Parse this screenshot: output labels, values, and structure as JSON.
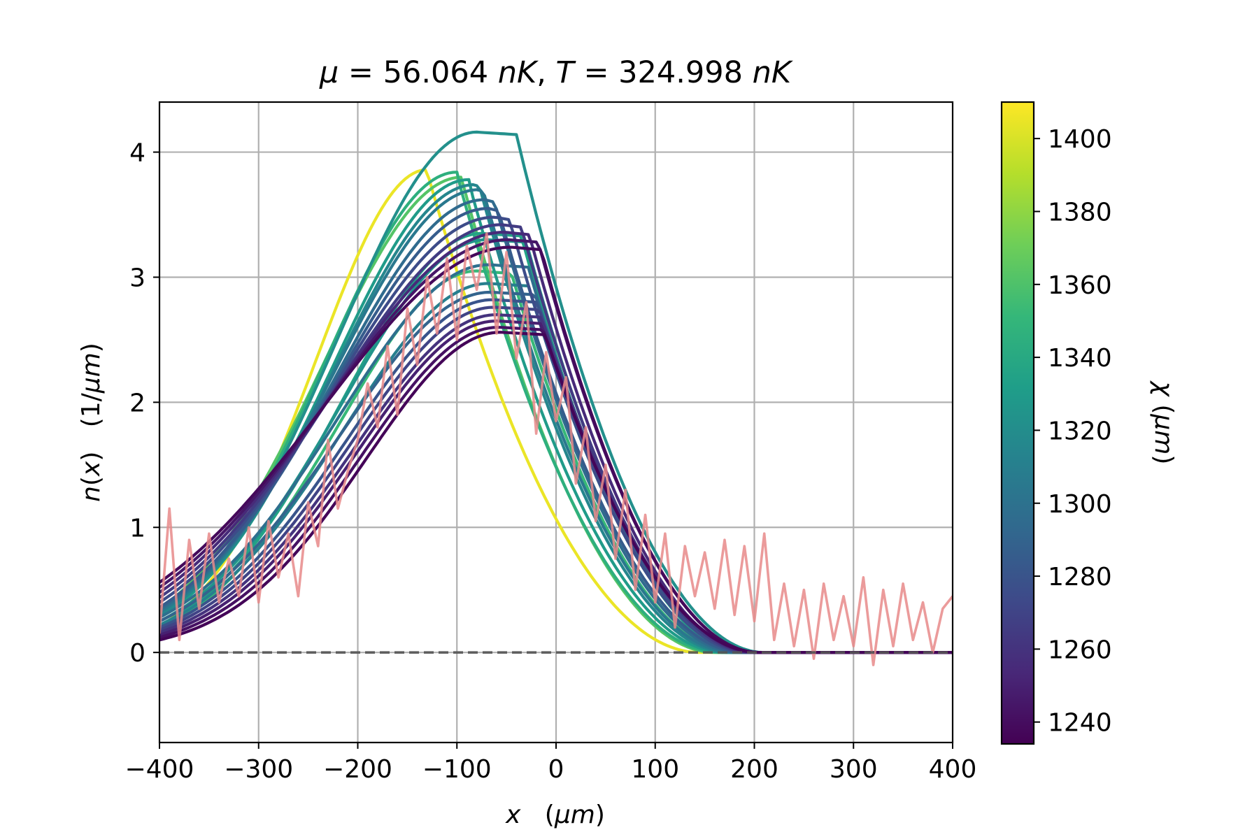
{
  "chart_data": {
    "type": "line",
    "title": "μ = 56.064 nK, T = 324.998 nK",
    "title_parts": {
      "mu_symbol": "μ",
      "mu_eq": " = 56.064 ",
      "mu_unit": "nK",
      "sep": ", ",
      "t_symbol": "T",
      "t_eq": " = 324.998 ",
      "t_unit": "nK"
    },
    "xlabel": "x   (μm)",
    "xlabel_parts": {
      "var": "x",
      "unit_open": "   (",
      "unit": "μm",
      "unit_close": ")"
    },
    "ylabel": "n(x)   (1/μm)",
    "ylabel_parts": {
      "var": "n",
      "arg_open": "(",
      "arg": "x",
      "arg_close": ")",
      "unit_open": "   (1/",
      "unit": "μm",
      "unit_close": ")"
    },
    "xlim": [
      -400,
      400
    ],
    "ylim": [
      -0.72,
      4.4
    ],
    "x_ticks": [
      -400,
      -300,
      -200,
      -100,
      0,
      100,
      200,
      300,
      400
    ],
    "x_tick_labels": [
      "−400",
      "−300",
      "−200",
      "−100",
      "0",
      "100",
      "200",
      "300",
      "400"
    ],
    "y_ticks": [
      0,
      1,
      2,
      3,
      4
    ],
    "y_tick_labels": [
      "0",
      "1",
      "2",
      "3",
      "4"
    ],
    "grid": true,
    "reference_line": {
      "y": 0,
      "style": "dashed",
      "color": "#555555"
    },
    "colorbar": {
      "label": "χ (μm)",
      "label_parts": {
        "var": "χ",
        "unit_open": " (",
        "unit": "μm",
        "unit_close": ")"
      },
      "range": [
        1234,
        1410
      ],
      "ticks": [
        1240,
        1260,
        1280,
        1300,
        1320,
        1340,
        1360,
        1380,
        1400
      ],
      "tick_labels": [
        "1240",
        "1260",
        "1280",
        "1300",
        "1320",
        "1340",
        "1360",
        "1380",
        "1400"
      ],
      "colormap": "viridis",
      "colormap_stops": [
        "#440154",
        "#482878",
        "#3e4989",
        "#31688e",
        "#26828e",
        "#1f9e89",
        "#35b779",
        "#6ece58",
        "#b5de2b",
        "#fde725"
      ]
    },
    "model_curves": {
      "description_of_family": "many theoretical profiles colored by χ",
      "curves": [
        {
          "chi": 1405,
          "peak_x": -130,
          "peak_n": 3.86,
          "flat": 0,
          "edge_x": 145,
          "tail": 0.21
        },
        {
          "chi": 1322,
          "peak_x": -80,
          "peak_n": 4.16,
          "flat": 40,
          "edge_x": 210,
          "tail": 0.3
        },
        {
          "chi": 1345,
          "peak_x": -100,
          "peak_n": 3.84,
          "flat": 0,
          "edge_x": 165,
          "tail": 0.3
        },
        {
          "chi": 1362,
          "peak_x": -95,
          "peak_n": 3.8,
          "flat": 0,
          "edge_x": 160,
          "tail": 0.35
        },
        {
          "chi": 1330,
          "peak_x": -88,
          "peak_n": 3.78,
          "flat": 0,
          "edge_x": 170,
          "tail": 0.28
        },
        {
          "chi": 1315,
          "peak_x": -82,
          "peak_n": 3.74,
          "flat": 5,
          "edge_x": 175,
          "tail": 0.3
        },
        {
          "chi": 1305,
          "peak_x": -78,
          "peak_n": 3.7,
          "flat": 5,
          "edge_x": 180,
          "tail": 0.32
        },
        {
          "chi": 1295,
          "peak_x": -72,
          "peak_n": 3.62,
          "flat": 10,
          "edge_x": 185,
          "tail": 0.34
        },
        {
          "chi": 1285,
          "peak_x": -68,
          "peak_n": 3.55,
          "flat": 10,
          "edge_x": 190,
          "tail": 0.36
        },
        {
          "chi": 1275,
          "peak_x": -62,
          "peak_n": 3.48,
          "flat": 15,
          "edge_x": 195,
          "tail": 0.4
        },
        {
          "chi": 1265,
          "peak_x": -55,
          "peak_n": 3.42,
          "flat": 20,
          "edge_x": 198,
          "tail": 0.44
        },
        {
          "chi": 1255,
          "peak_x": -52,
          "peak_n": 3.36,
          "flat": 25,
          "edge_x": 200,
          "tail": 0.48
        },
        {
          "chi": 1245,
          "peak_x": -48,
          "peak_n": 3.3,
          "flat": 30,
          "edge_x": 205,
          "tail": 0.52
        },
        {
          "chi": 1238,
          "peak_x": -45,
          "peak_n": 3.24,
          "flat": 30,
          "edge_x": 205,
          "tail": 0.56
        },
        {
          "chi": 1335,
          "peak_x": -75,
          "peak_n": 3.35,
          "flat": 40,
          "edge_x": 190,
          "tail": 0.22
        },
        {
          "chi": 1325,
          "peak_x": -70,
          "peak_n": 3.3,
          "flat": 40,
          "edge_x": 195,
          "tail": 0.25
        },
        {
          "chi": 1298,
          "peak_x": -68,
          "peak_n": 3.1,
          "flat": 40,
          "edge_x": 195,
          "tail": 0.28
        },
        {
          "chi": 1352,
          "peak_x": -80,
          "peak_n": 3.05,
          "flat": 35,
          "edge_x": 180,
          "tail": 0.2
        },
        {
          "chi": 1310,
          "peak_x": -68,
          "peak_n": 2.95,
          "flat": 40,
          "edge_x": 195,
          "tail": 0.22
        },
        {
          "chi": 1290,
          "peak_x": -66,
          "peak_n": 2.88,
          "flat": 45,
          "edge_x": 195,
          "tail": 0.25
        },
        {
          "chi": 1280,
          "peak_x": -64,
          "peak_n": 2.82,
          "flat": 45,
          "edge_x": 200,
          "tail": 0.2
        },
        {
          "chi": 1270,
          "peak_x": -62,
          "peak_n": 2.76,
          "flat": 45,
          "edge_x": 200,
          "tail": 0.18
        },
        {
          "chi": 1260,
          "peak_x": -60,
          "peak_n": 2.7,
          "flat": 45,
          "edge_x": 205,
          "tail": 0.16
        },
        {
          "chi": 1250,
          "peak_x": -60,
          "peak_n": 2.65,
          "flat": 45,
          "edge_x": 205,
          "tail": 0.14
        },
        {
          "chi": 1242,
          "peak_x": -58,
          "peak_n": 2.6,
          "flat": 45,
          "edge_x": 205,
          "tail": 0.12
        },
        {
          "chi": 1236,
          "peak_x": -56,
          "peak_n": 2.56,
          "flat": 45,
          "edge_x": 205,
          "tail": 0.1
        }
      ]
    },
    "measured_series": {
      "color": "#e8898a",
      "x": [
        -400,
        -390,
        -380,
        -370,
        -360,
        -350,
        -340,
        -330,
        -320,
        -310,
        -300,
        -290,
        -280,
        -270,
        -260,
        -250,
        -240,
        -230,
        -220,
        -210,
        -200,
        -190,
        -180,
        -170,
        -160,
        -150,
        -140,
        -130,
        -120,
        -110,
        -100,
        -90,
        -80,
        -70,
        -60,
        -50,
        -40,
        -30,
        -20,
        -10,
        0,
        10,
        20,
        30,
        40,
        50,
        60,
        70,
        80,
        90,
        100,
        110,
        120,
        130,
        140,
        150,
        160,
        170,
        180,
        190,
        200,
        210,
        220,
        230,
        240,
        250,
        260,
        270,
        280,
        290,
        300,
        310,
        320,
        330,
        340,
        350,
        360,
        370,
        380,
        390,
        400
      ],
      "y": [
        0.15,
        1.15,
        0.1,
        0.9,
        0.35,
        0.95,
        0.4,
        0.75,
        0.45,
        1.0,
        0.4,
        1.05,
        0.6,
        0.95,
        0.45,
        1.2,
        0.85,
        1.7,
        1.15,
        1.45,
        1.7,
        2.15,
        1.8,
        2.45,
        1.9,
        2.75,
        2.3,
        3.0,
        2.55,
        3.15,
        2.5,
        3.25,
        2.9,
        3.35,
        2.55,
        3.2,
        2.35,
        2.8,
        1.75,
        2.4,
        1.85,
        2.2,
        1.35,
        1.8,
        1.05,
        1.5,
        0.75,
        1.3,
        0.5,
        1.1,
        0.4,
        0.95,
        0.2,
        0.85,
        0.45,
        0.8,
        0.35,
        0.9,
        0.3,
        0.85,
        0.25,
        0.95,
        0.1,
        0.55,
        0.05,
        0.5,
        -0.05,
        0.55,
        0.1,
        0.45,
        0.05,
        0.6,
        -0.1,
        0.5,
        0.05,
        0.55,
        0.1,
        0.4,
        0.0,
        0.35,
        0.45
      ]
    }
  }
}
